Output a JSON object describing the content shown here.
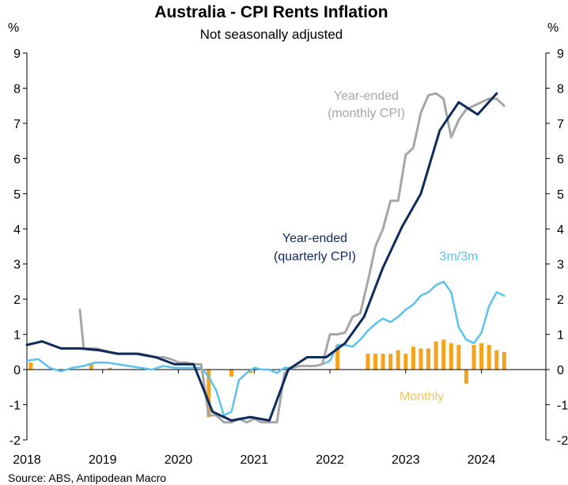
{
  "chart_data": {
    "type": "line",
    "title": "Australia - CPI Rents Inflation",
    "subtitle": "Not seasonally adjusted",
    "ylabel_left": "%",
    "ylabel_right": "%",
    "ylim": [
      -2,
      9
    ],
    "yticks": [
      -2,
      -1,
      0,
      1,
      2,
      3,
      4,
      5,
      6,
      7,
      8,
      9
    ],
    "xlim": [
      2018,
      2024.85
    ],
    "xticks": [
      "2018",
      "2019",
      "2020",
      "2021",
      "2022",
      "2023",
      "2024"
    ],
    "grid": false,
    "source": "Source: ABS, Antipodean Macro",
    "annotations": [
      {
        "text": "Year-ended",
        "series": "monthly"
      },
      {
        "text": "(monthly CPI)",
        "series": "monthly"
      },
      {
        "text": "Year-ended",
        "series": "quarterly"
      },
      {
        "text": "(quarterly CPI)",
        "series": "quarterly"
      },
      {
        "text": "3m/3m",
        "series": "threem"
      },
      {
        "text": "Monthly",
        "series": "bars"
      }
    ],
    "colors": {
      "quarterly": "#0d2a5c",
      "monthly": "#a6a6a6",
      "threem": "#5bc2f0",
      "bars": "#f7a21b",
      "axis": "#000000"
    },
    "series": [
      {
        "id": "quarterly",
        "type": "line",
        "x": [
          2018.0,
          2018.2,
          2018.45,
          2018.7,
          2018.95,
          2019.2,
          2019.45,
          2019.7,
          2019.95,
          2020.2,
          2020.45,
          2020.7,
          2020.95,
          2021.2,
          2021.45,
          2021.7,
          2021.95,
          2022.2,
          2022.45,
          2022.7,
          2022.95,
          2023.2,
          2023.45,
          2023.7,
          2023.95,
          2024.2
        ],
        "y": [
          0.7,
          0.8,
          0.6,
          0.6,
          0.55,
          0.45,
          0.45,
          0.35,
          0.15,
          0.15,
          -1.2,
          -1.45,
          -1.35,
          -1.45,
          0.0,
          0.35,
          0.35,
          0.75,
          1.5,
          2.9,
          4.05,
          5.0,
          6.8,
          7.6,
          7.25,
          7.85
        ]
      },
      {
        "id": "monthly",
        "type": "line",
        "x": [
          2018.7,
          2018.75,
          2018.83,
          2018.92,
          2019.0,
          2019.1,
          2019.2,
          2019.3,
          2019.4,
          2019.5,
          2019.6,
          2019.7,
          2019.8,
          2019.9,
          2020.0,
          2020.1,
          2020.2,
          2020.3,
          2020.4,
          2020.5,
          2020.6,
          2020.7,
          2020.8,
          2020.9,
          2021.0,
          2021.1,
          2021.2,
          2021.3,
          2021.4,
          2021.5,
          2021.6,
          2021.7,
          2021.8,
          2021.9,
          2022.0,
          2022.1,
          2022.2,
          2022.3,
          2022.4,
          2022.5,
          2022.6,
          2022.7,
          2022.8,
          2022.9,
          2023.0,
          2023.1,
          2023.2,
          2023.3,
          2023.4,
          2023.5,
          2023.6,
          2023.7,
          2023.8,
          2023.9,
          2024.0,
          2024.1,
          2024.2,
          2024.3
        ],
        "y": [
          1.7,
          0.6,
          0.6,
          0.6,
          0.55,
          0.5,
          0.45,
          0.45,
          0.45,
          0.45,
          0.4,
          0.35,
          0.35,
          0.3,
          0.2,
          0.2,
          0.15,
          0.15,
          -1.3,
          -1.3,
          -1.5,
          -1.5,
          -1.4,
          -1.5,
          -1.4,
          -1.5,
          -1.5,
          -1.5,
          -0.1,
          0.05,
          0.1,
          0.1,
          0.1,
          0.15,
          1.0,
          1.0,
          1.05,
          1.5,
          1.6,
          2.5,
          3.5,
          4.0,
          4.8,
          4.8,
          6.1,
          6.3,
          7.3,
          7.8,
          7.85,
          7.7,
          6.6,
          7.1,
          7.4,
          7.5,
          7.6,
          7.7,
          7.7,
          7.5
        ]
      },
      {
        "id": "threem",
        "type": "line",
        "x": [
          2018.0,
          2018.15,
          2018.3,
          2018.45,
          2018.6,
          2018.75,
          2018.9,
          2019.05,
          2019.2,
          2019.35,
          2019.5,
          2019.65,
          2019.8,
          2019.95,
          2020.1,
          2020.2,
          2020.3,
          2020.4,
          2020.5,
          2020.6,
          2020.7,
          2020.8,
          2020.9,
          2021.0,
          2021.1,
          2021.2,
          2021.3,
          2021.4,
          2021.5,
          2021.6,
          2021.7,
          2021.8,
          2021.9,
          2022.0,
          2022.1,
          2022.2,
          2022.3,
          2022.4,
          2022.5,
          2022.6,
          2022.7,
          2022.8,
          2022.9,
          2023.0,
          2023.1,
          2023.2,
          2023.3,
          2023.4,
          2023.5,
          2023.6,
          2023.7,
          2023.8,
          2023.9,
          2024.0,
          2024.1,
          2024.2,
          2024.3
        ],
        "y": [
          0.25,
          0.3,
          0.05,
          -0.05,
          0.05,
          0.1,
          0.2,
          0.2,
          0.15,
          0.1,
          0.05,
          0.0,
          0.1,
          0.05,
          0.05,
          0.05,
          0.05,
          -0.2,
          -0.6,
          -1.3,
          -1.2,
          -0.3,
          -0.1,
          0.05,
          0.0,
          0.0,
          -0.1,
          0.05,
          0.05,
          0.1,
          0.1,
          0.1,
          0.15,
          0.25,
          0.7,
          0.7,
          0.65,
          0.85,
          1.1,
          1.3,
          1.45,
          1.35,
          1.5,
          1.7,
          1.85,
          2.1,
          2.2,
          2.4,
          2.5,
          2.2,
          1.2,
          0.85,
          0.75,
          1.05,
          1.8,
          2.2,
          2.1
        ]
      },
      {
        "id": "bars",
        "type": "bar",
        "x": [
          2018.05,
          2018.85,
          2019.1,
          2020.4,
          2020.7,
          2020.95,
          2022.1,
          2022.5,
          2022.6,
          2022.7,
          2022.8,
          2022.9,
          2023.0,
          2023.1,
          2023.2,
          2023.3,
          2023.4,
          2023.5,
          2023.6,
          2023.7,
          2023.8,
          2023.9,
          2024.0,
          2024.1,
          2024.2,
          2024.3
        ],
        "y": [
          0.2,
          0.15,
          0.05,
          -1.35,
          -0.2,
          -0.1,
          0.7,
          0.45,
          0.45,
          0.45,
          0.45,
          0.55,
          0.45,
          0.65,
          0.6,
          0.6,
          0.8,
          0.85,
          0.75,
          0.7,
          -0.4,
          0.7,
          0.75,
          0.7,
          0.55,
          0.5
        ]
      }
    ]
  }
}
